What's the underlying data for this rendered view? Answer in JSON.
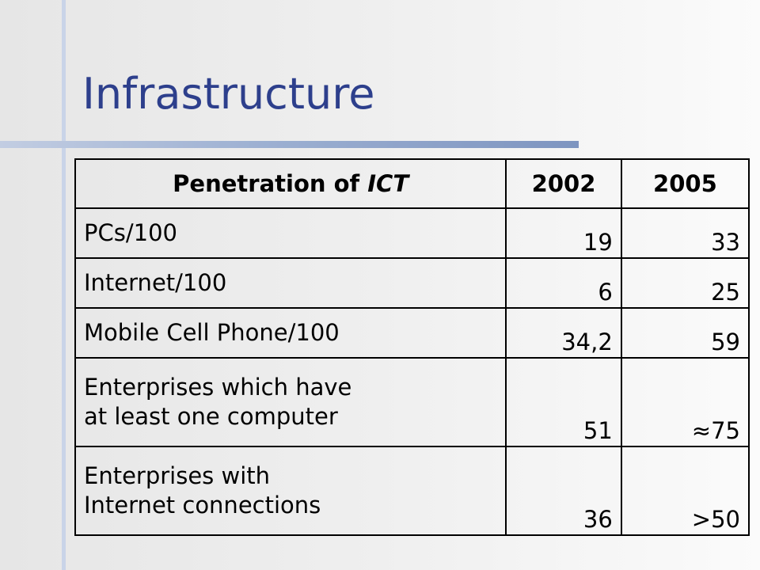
{
  "slide": {
    "title": "Infrastructure"
  },
  "table": {
    "header": {
      "label_prefix": "Penetration of ",
      "label_emphasis": "ICT",
      "year1": "2002",
      "year2": "2005"
    },
    "rows": [
      {
        "label": "PCs/100",
        "v2002": "19",
        "v2005": "33"
      },
      {
        "label": "Internet/100",
        "v2002": "6",
        "v2005": "25"
      },
      {
        "label": "Mobile Cell Phone/100",
        "v2002": "34,2",
        "v2005": "59"
      },
      {
        "label_line1": "Enterprises which have",
        "label_line2": "at least one computer",
        "v2002": "51",
        "v2005": "≈75"
      },
      {
        "label_line1": "Enterprises with",
        "label_line2": "Internet connections",
        "v2002": "36",
        "v2005": ">50"
      }
    ]
  },
  "colors": {
    "title": "#2d3f8c",
    "accent_bar": "#7e95c0",
    "vertical_bar": "#c9d4e8",
    "background": "#efefef"
  }
}
